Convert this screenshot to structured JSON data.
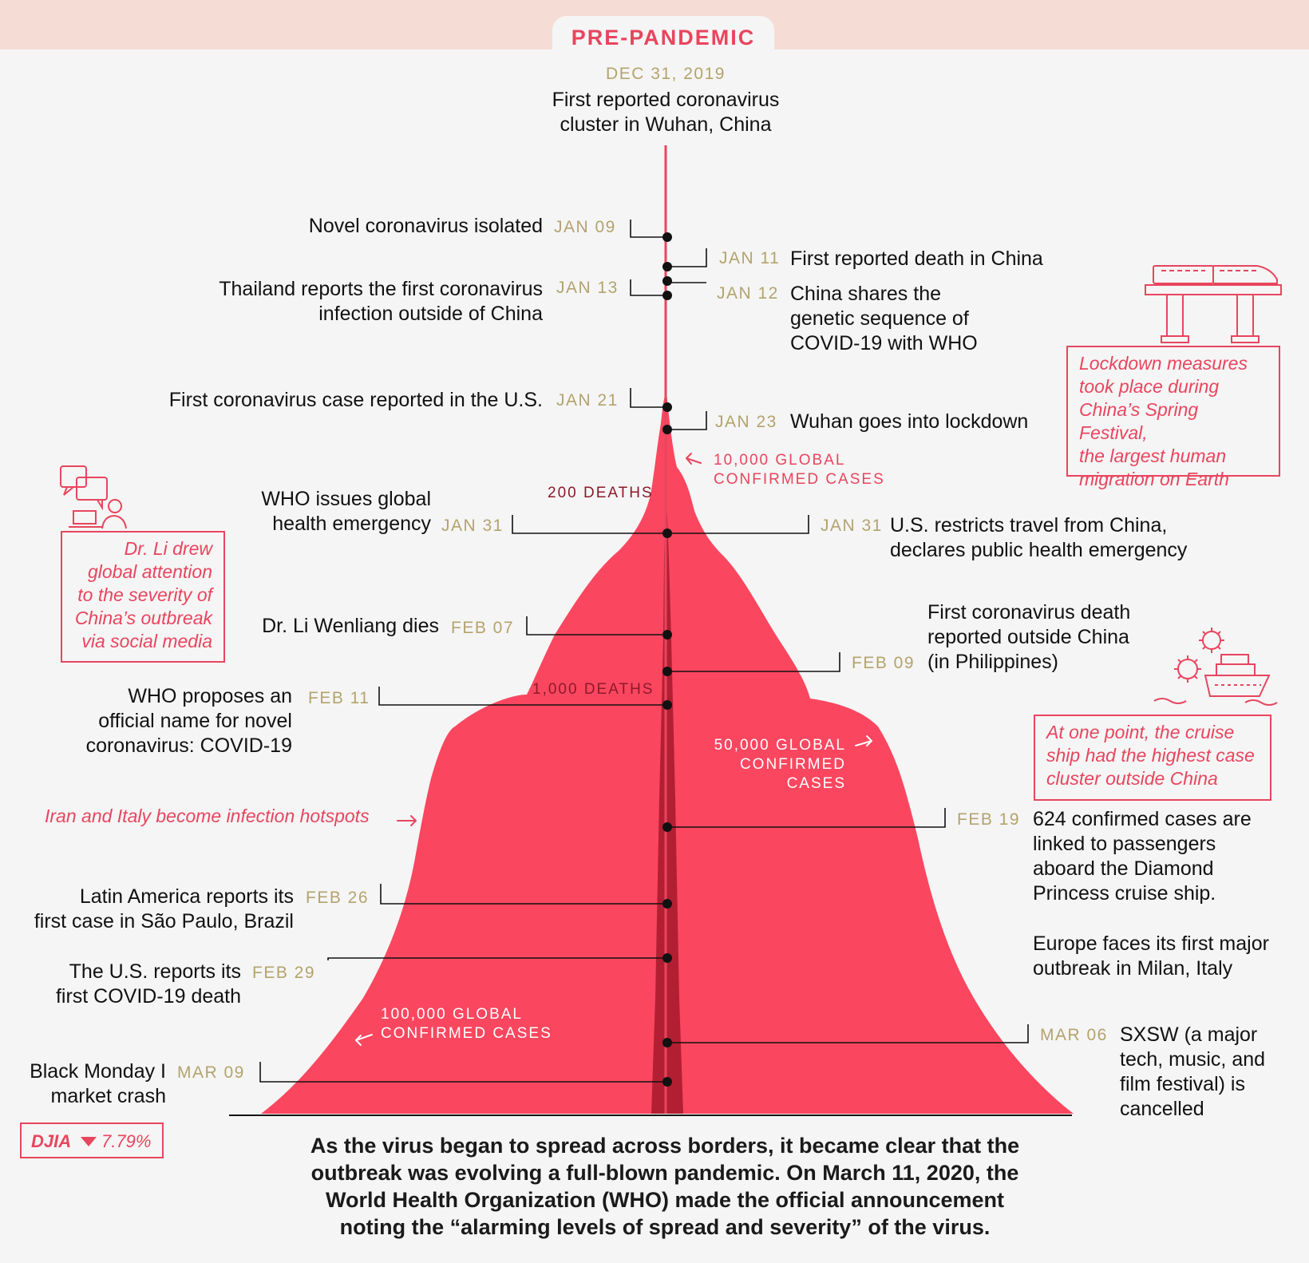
{
  "header": {
    "label": "PRE-PANDEMIC"
  },
  "start": {
    "date": "DEC 31, 2019",
    "lines": [
      "First reported coronavirus",
      "cluster in Wuhan, China"
    ]
  },
  "events": [
    {
      "id": "jan09",
      "date": "JAN 09",
      "lines": [
        "Novel coronavirus isolated"
      ]
    },
    {
      "id": "jan11",
      "date": "JAN 11",
      "lines": [
        "First reported death in China"
      ]
    },
    {
      "id": "jan13",
      "date": "JAN 13",
      "lines": [
        "Thailand reports the first coronavirus",
        "infection outside of China"
      ]
    },
    {
      "id": "jan12",
      "date": "JAN 12",
      "lines": [
        "China shares the",
        "genetic sequence of",
        "COVID-19 with WHO"
      ]
    },
    {
      "id": "jan21",
      "date": "JAN 21",
      "lines": [
        "First coronavirus case reported in the U.S."
      ]
    },
    {
      "id": "jan23",
      "date": "JAN 23",
      "lines": [
        "Wuhan goes into lockdown"
      ]
    },
    {
      "id": "jan31a",
      "date": "JAN 31",
      "lines": [
        "WHO issues global",
        "health emergency"
      ]
    },
    {
      "id": "jan31b",
      "date": "JAN 31",
      "lines": [
        "U.S. restricts travel from China,",
        "declares public health emergency"
      ]
    },
    {
      "id": "feb07",
      "date": "FEB 07",
      "lines": [
        "Dr. Li Wenliang dies"
      ]
    },
    {
      "id": "feb09",
      "date": "FEB 09",
      "lines": [
        "First coronavirus death",
        "reported outside China",
        "(in Philippines)"
      ]
    },
    {
      "id": "feb11",
      "date": "FEB 11",
      "lines": [
        "WHO proposes an",
        "official name for novel",
        "coronavirus: COVID-19"
      ]
    },
    {
      "id": "feb19",
      "date": "FEB 19",
      "lines": [
        "624 confirmed cases are",
        "linked to passengers",
        "aboard the Diamond",
        "Princess cruise ship."
      ]
    },
    {
      "id": "europe",
      "lines": [
        "Europe faces its first major",
        "outbreak in Milan, Italy"
      ]
    },
    {
      "id": "feb26",
      "date": "FEB 26",
      "lines": [
        "Latin America reports its",
        "first case in São Paulo, Brazil"
      ]
    },
    {
      "id": "feb29",
      "date": "FEB 29",
      "lines": [
        "The U.S. reports its",
        "first COVID-19 death"
      ]
    },
    {
      "id": "mar06",
      "date": "MAR 06",
      "lines": [
        "SXSW (a major",
        "tech, music, and",
        "film festival) is",
        "cancelled"
      ]
    },
    {
      "id": "mar09",
      "date": "MAR 09",
      "lines": [
        "Black Monday I",
        "market crash"
      ]
    }
  ],
  "milestones": {
    "cases10k": [
      "10,000 GLOBAL",
      "CONFIRMED CASES"
    ],
    "cases50k": [
      "50,000 GLOBAL",
      "CONFIRMED",
      "CASES"
    ],
    "cases100k": [
      "100,000 GLOBAL",
      "CONFIRMED CASES"
    ],
    "deaths200": "200 DEATHS",
    "deaths1000": "1,000 DEATHS"
  },
  "notes": {
    "lockdown": [
      "Lockdown measures",
      "took place during",
      "China’s Spring Festival,",
      "the largest human",
      "migration on Earth"
    ],
    "drli": [
      "Dr. Li drew",
      "global attention",
      "to the severity of",
      "China’s outbreak",
      "via social media"
    ],
    "cruise": [
      "At one point, the cruise",
      "ship had the highest case",
      "cluster outside China"
    ]
  },
  "hotspots": "Iran and Italy become infection hotspots",
  "djia": {
    "label": "DJIA",
    "value": "7.79%"
  },
  "footer": [
    "As the virus began to spread across borders, it became clear that the",
    "outbreak was evolving a full-blown pandemic. On March 11, 2020, the",
    "World Health Organization (WHO) made the official announcement",
    "noting the “alarming levels of spread and severity” of the virus."
  ],
  "colors": {
    "accent": "#e8455e",
    "cases_area": "#fb465f",
    "deaths_area": "#b21f33",
    "date": "#b3a36d",
    "band": "#f5ddd5"
  },
  "icons": [
    "train-icon",
    "chat-laptop-icon",
    "virus-cruise-ship-icon"
  ]
}
